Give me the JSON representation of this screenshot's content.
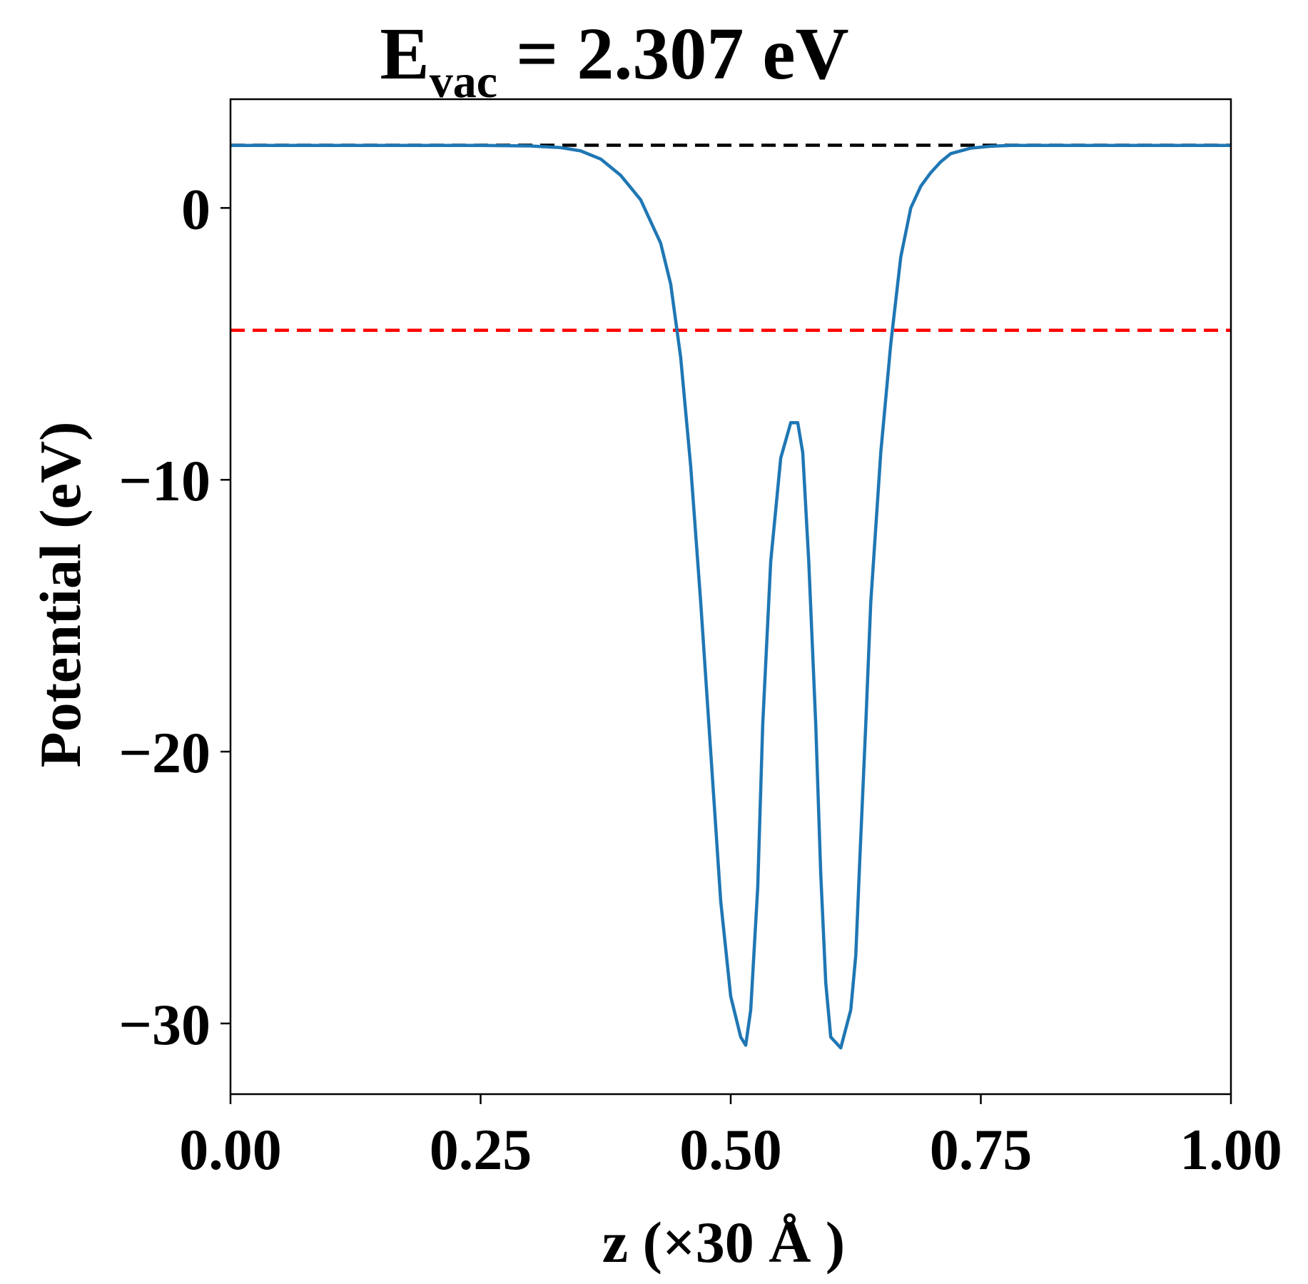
{
  "chart_data": {
    "type": "line",
    "title_main": "E",
    "title_sub": "vac",
    "title_rest": " = 2.307 eV",
    "xlabel": "z (×30 Å )",
    "ylabel": "Potential (eV)",
    "xlim": [
      0,
      1
    ],
    "ylim": [
      -32.6,
      4.0
    ],
    "x_ticks": [
      0.0,
      0.25,
      0.5,
      0.75,
      1.0
    ],
    "x_tick_labels": [
      "0.00",
      "0.25",
      "0.50",
      "0.75",
      "1.00"
    ],
    "y_ticks": [
      0,
      -10,
      -20,
      -30
    ],
    "y_tick_labels": [
      "0",
      "−10",
      "−20",
      "−30"
    ],
    "grid": false,
    "legend": "none",
    "reference_lines": [
      {
        "id": "vacuum-level-line",
        "y": 2.307,
        "color": "#000000",
        "style": "dashed"
      },
      {
        "id": "fermi-level-line",
        "y": -4.5,
        "color": "#ff0000",
        "style": "dashed"
      }
    ],
    "series": [
      {
        "color": "#1f77b4",
        "x": [
          0.0,
          0.05,
          0.1,
          0.15,
          0.2,
          0.25,
          0.3,
          0.33,
          0.35,
          0.37,
          0.39,
          0.41,
          0.43,
          0.44,
          0.45,
          0.46,
          0.47,
          0.48,
          0.49,
          0.5,
          0.51,
          0.515,
          0.52,
          0.527,
          0.532,
          0.54,
          0.55,
          0.56,
          0.567,
          0.572,
          0.578,
          0.585,
          0.59,
          0.595,
          0.6,
          0.61,
          0.62,
          0.625,
          0.629,
          0.635,
          0.64,
          0.65,
          0.66,
          0.67,
          0.68,
          0.69,
          0.7,
          0.71,
          0.72,
          0.74,
          0.76,
          0.78,
          0.8,
          0.82,
          0.85,
          0.9,
          0.95,
          1.0
        ],
        "y": [
          2.3,
          2.3,
          2.3,
          2.3,
          2.3,
          2.3,
          2.28,
          2.22,
          2.1,
          1.8,
          1.2,
          0.3,
          -1.3,
          -2.8,
          -5.5,
          -9.5,
          -14.5,
          -20.0,
          -25.5,
          -29.0,
          -30.5,
          -30.8,
          -29.5,
          -25.0,
          -19.0,
          -13.0,
          -9.2,
          -7.9,
          -7.9,
          -9.0,
          -13.0,
          -19.0,
          -24.5,
          -28.5,
          -30.5,
          -30.9,
          -29.5,
          -27.5,
          -24.0,
          -19.0,
          -14.5,
          -9.0,
          -5.0,
          -1.8,
          0.0,
          0.8,
          1.3,
          1.7,
          2.0,
          2.2,
          2.27,
          2.3,
          2.3,
          2.3,
          2.3,
          2.3,
          2.3,
          2.3
        ]
      }
    ]
  }
}
